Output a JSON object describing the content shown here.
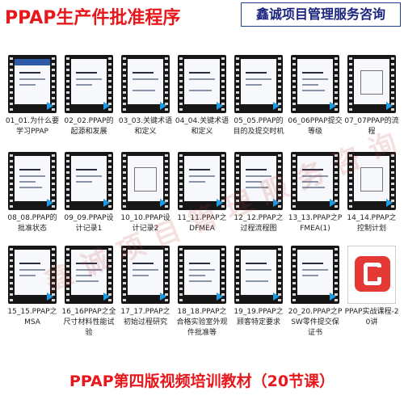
{
  "header": {
    "title": "PPAP生产件批准程序",
    "brand": "鑫诚项目管理服务咨询"
  },
  "videos": [
    {
      "caption": "01_01.为什么要学习PPAP"
    },
    {
      "caption": "02_02.PPAP的起源和发展"
    },
    {
      "caption": "03_03.关键术语和定义"
    },
    {
      "caption": "04_04.关键术语和定义"
    },
    {
      "caption": "05_05.PPAP的目的及提交时机"
    },
    {
      "caption": "06_06PPAP提交等级"
    },
    {
      "caption": "07_07PPAP的流程"
    },
    {
      "caption": "08_08.PPAP的批准状态"
    },
    {
      "caption": "09_09.PPAP设计记录1"
    },
    {
      "caption": "10_10.PPAP设计记录2"
    },
    {
      "caption": "11_11.PPAP之DFMEA"
    },
    {
      "caption": "12_12.PPAP之过程流程图"
    },
    {
      "caption": "13_13.PPAP之PFMEA(1)"
    },
    {
      "caption": "14_14.PPAP之控制计划"
    },
    {
      "caption": "15_15.PPAP之MSA"
    },
    {
      "caption": "16_16PPAP之全尺寸材料性能试验"
    },
    {
      "caption": "17_17.PPAP之初始过程研究"
    },
    {
      "caption": "18_18.PPAP之合格实验室外观件批准等"
    },
    {
      "caption": "19_19.PPAP之顾客特定要求"
    },
    {
      "caption": "20_20.PPAP之PSW零件提交保证书"
    },
    {
      "caption": "PPAP实战课程-20讲"
    }
  ],
  "footer": {
    "title": "PPAP第四版视频培训教材（20节课）"
  },
  "watermark": "鑫诚项目管理服务咨询",
  "colors": {
    "accent_red": "#e8171b",
    "brand_navy": "#1a237e",
    "play_blue": "#1e9be3"
  }
}
